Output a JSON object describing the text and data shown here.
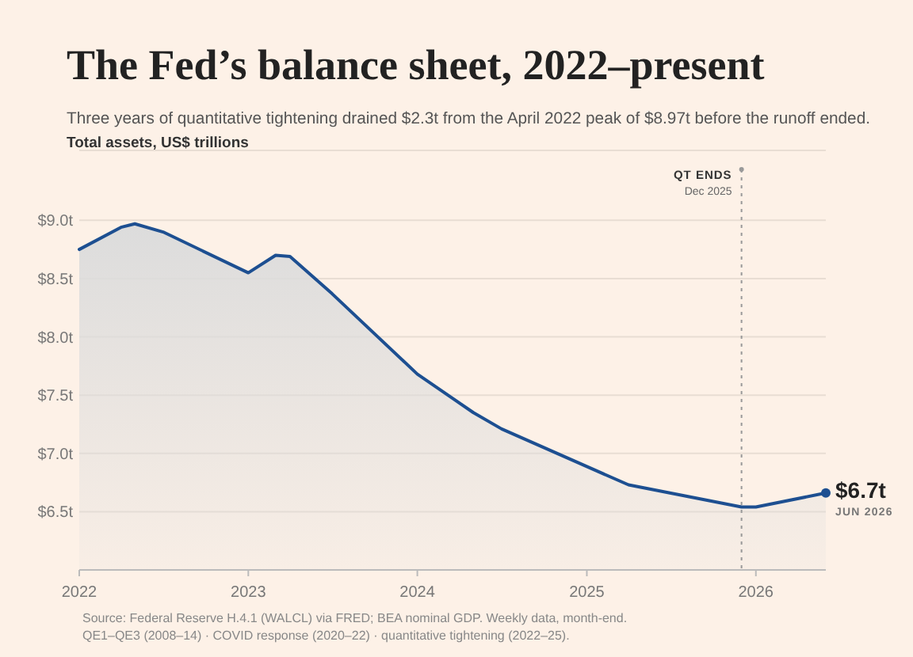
{
  "chart_data": {
    "type": "area",
    "title": "The Fed’s balance sheet, 2022–present",
    "subtitle": "Three years of quantitative tightening drained $2.3t from the April 2022 peak of $8.97t before the runoff ended.",
    "ylabel": "Total assets, US$ trillions",
    "x": [
      "2022-01",
      "2022-04",
      "2022-05",
      "2022-07",
      "2023-01",
      "2023-03",
      "2023-04",
      "2023-07",
      "2024-01",
      "2024-05",
      "2024-07",
      "2025-04",
      "2025-12",
      "2026-01",
      "2026-06"
    ],
    "series": [
      {
        "color": "#1d4f91",
        "values": [
          8.75,
          8.94,
          8.97,
          8.9,
          8.55,
          8.7,
          8.69,
          8.37,
          7.68,
          7.35,
          7.21,
          6.73,
          6.54,
          6.54,
          6.66
        ]
      }
    ],
    "xlim": [
      "2022-01",
      "2026-06"
    ],
    "ylim": [
      6.0,
      9.6
    ],
    "xticks": [
      {
        "value": "2022",
        "label": "2022"
      },
      {
        "value": "2023",
        "label": "2023"
      },
      {
        "value": "2024",
        "label": "2024"
      },
      {
        "value": "2025",
        "label": "2025"
      },
      {
        "value": "2026",
        "label": "2026"
      }
    ],
    "yticks": [
      {
        "value": 6.5,
        "label": "$6.5t"
      },
      {
        "value": 7,
        "label": "$7.0t"
      },
      {
        "value": 7.5,
        "label": "$7.5t"
      },
      {
        "value": 8,
        "label": "$8.0t"
      },
      {
        "value": 8.5,
        "label": "$8.5t"
      },
      {
        "value": 9,
        "label": "$9.0t"
      }
    ],
    "grid": "y",
    "marker": "none",
    "line_style": "solid",
    "ref_lines": [
      {
        "axis": "x",
        "value": "2025-12",
        "label": "QT ENDS",
        "line_style": "dotted",
        "color": "#999999"
      }
    ],
    "annotations": [
      {
        "text": "$6.7t",
        "x": "2026-06",
        "y": 6.66
      },
      {
        "text": "JUN 2026",
        "x": "2026-06",
        "y": 6.66
      },
      "Dec 2025",
      "Source: Federal Reserve H.4.1 (WALCL) via FRED; BEA nominal GDP. Weekly data, month-end.",
      "QE1–QE3 (2008–14) · COVID response (2020–22) · quantitative tightening (2022–25)."
    ]
  }
}
